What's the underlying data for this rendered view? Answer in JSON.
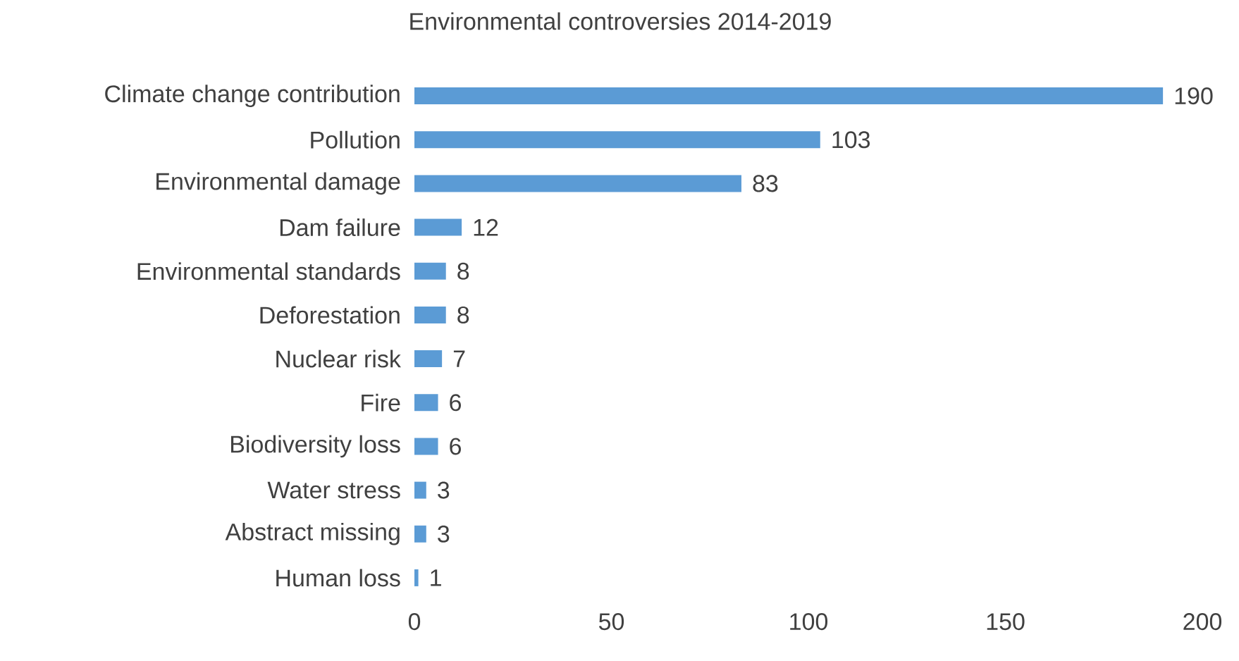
{
  "chart_data": {
    "type": "bar",
    "orientation": "horizontal",
    "title": "Environmental controversies 2014-2019",
    "categories": [
      "Climate change contribution",
      "Pollution",
      "Environmental damage",
      "Dam failure",
      "Environmental standards",
      "Deforestation",
      "Nuclear risk",
      "Fire",
      "Biodiversity loss",
      "Water stress",
      "Abstract missing",
      "Human loss"
    ],
    "values": [
      190,
      103,
      83,
      12,
      8,
      8,
      7,
      6,
      6,
      3,
      3,
      1
    ],
    "color": "#5b9bd5",
    "xlim": [
      0,
      200
    ],
    "xticks": [
      0,
      50,
      100,
      150,
      200
    ],
    "data_labels": true,
    "grid": false
  }
}
